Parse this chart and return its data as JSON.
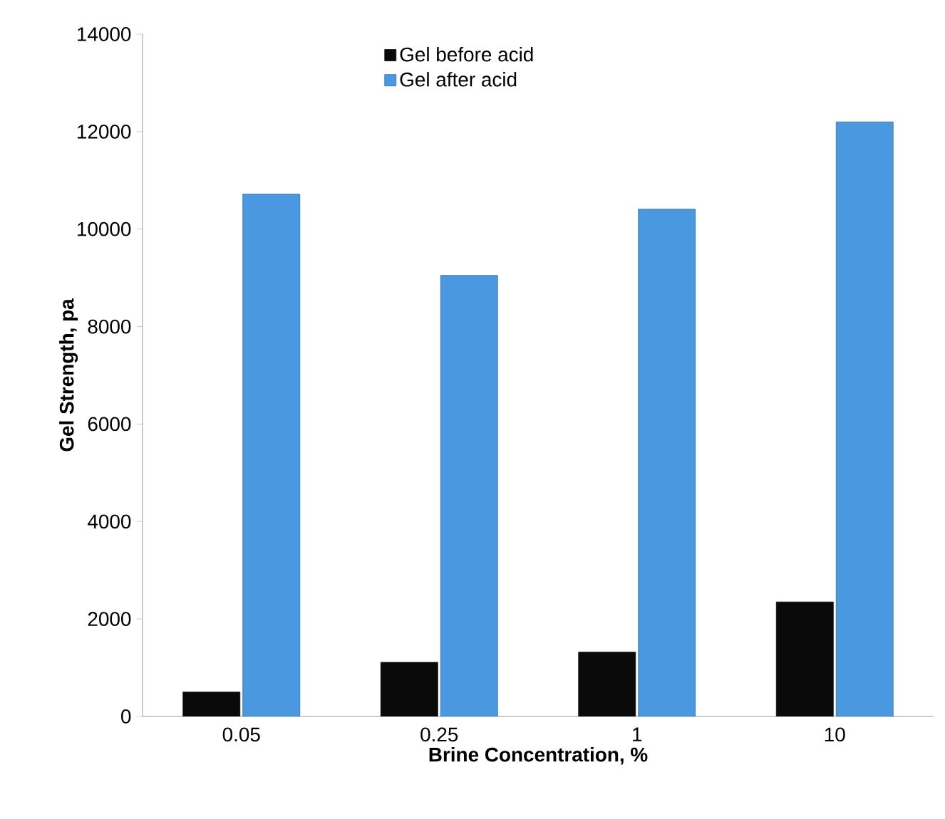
{
  "chart_data": {
    "type": "bar",
    "xlabel": "Brine Concentration, %",
    "ylabel": "Gel Strength, pa",
    "categories": [
      "0.05",
      "0.25",
      "1",
      "10"
    ],
    "series": [
      {
        "name": "Gel before acid",
        "color": "#0a0a0a",
        "values": [
          500,
          1110,
          1320,
          2350
        ]
      },
      {
        "name": "Gel after acid",
        "color": "#4a98e0",
        "values": [
          10720,
          9050,
          10410,
          12200
        ]
      }
    ],
    "ylim": [
      0,
      14000
    ],
    "yticks": [
      0,
      2000,
      4000,
      6000,
      8000,
      10000,
      12000,
      14000
    ],
    "grid": false,
    "legend": "top"
  }
}
